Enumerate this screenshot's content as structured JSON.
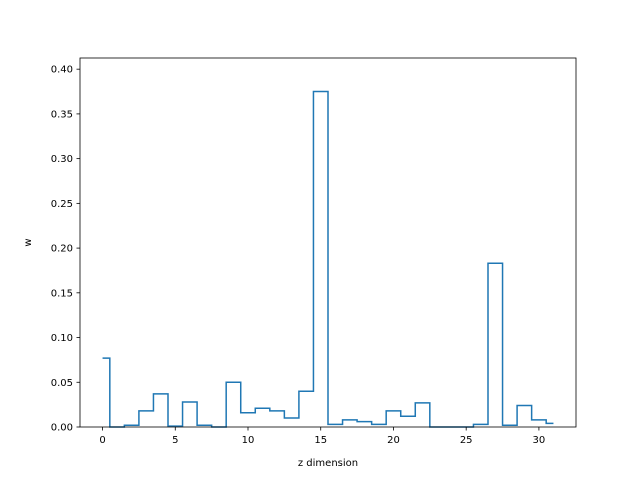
{
  "chart_data": {
    "type": "line",
    "style": "step-mid",
    "xlabel": "z dimension",
    "ylabel": "w",
    "xlim": [
      -1.55,
      32.55
    ],
    "ylim": [
      0.0,
      0.4125
    ],
    "grid": false,
    "legend": "none",
    "color": "#1f77b4",
    "x_ticks": [
      0,
      5,
      10,
      15,
      20,
      25,
      30
    ],
    "y_ticks": [
      0.0,
      0.05,
      0.1,
      0.15,
      0.2,
      0.25,
      0.3,
      0.35,
      0.4
    ],
    "x_tick_labels": [
      "0",
      "5",
      "10",
      "15",
      "20",
      "25",
      "30"
    ],
    "y_tick_labels": [
      "0.00",
      "0.05",
      "0.10",
      "0.15",
      "0.20",
      "0.25",
      "0.30",
      "0.35",
      "0.40"
    ],
    "x": [
      0,
      1,
      2,
      3,
      4,
      5,
      6,
      7,
      8,
      9,
      10,
      11,
      12,
      13,
      14,
      15,
      16,
      17,
      18,
      19,
      20,
      21,
      22,
      23,
      24,
      25,
      26,
      27,
      28,
      29,
      30,
      31
    ],
    "values": [
      0.077,
      0.0,
      0.002,
      0.018,
      0.037,
      0.001,
      0.028,
      0.002,
      0.0,
      0.05,
      0.016,
      0.021,
      0.018,
      0.01,
      0.04,
      0.375,
      0.003,
      0.008,
      0.006,
      0.003,
      0.018,
      0.012,
      0.027,
      0.0,
      0.0,
      0.0,
      0.003,
      0.183,
      0.002,
      0.024,
      0.008,
      0.004
    ]
  }
}
